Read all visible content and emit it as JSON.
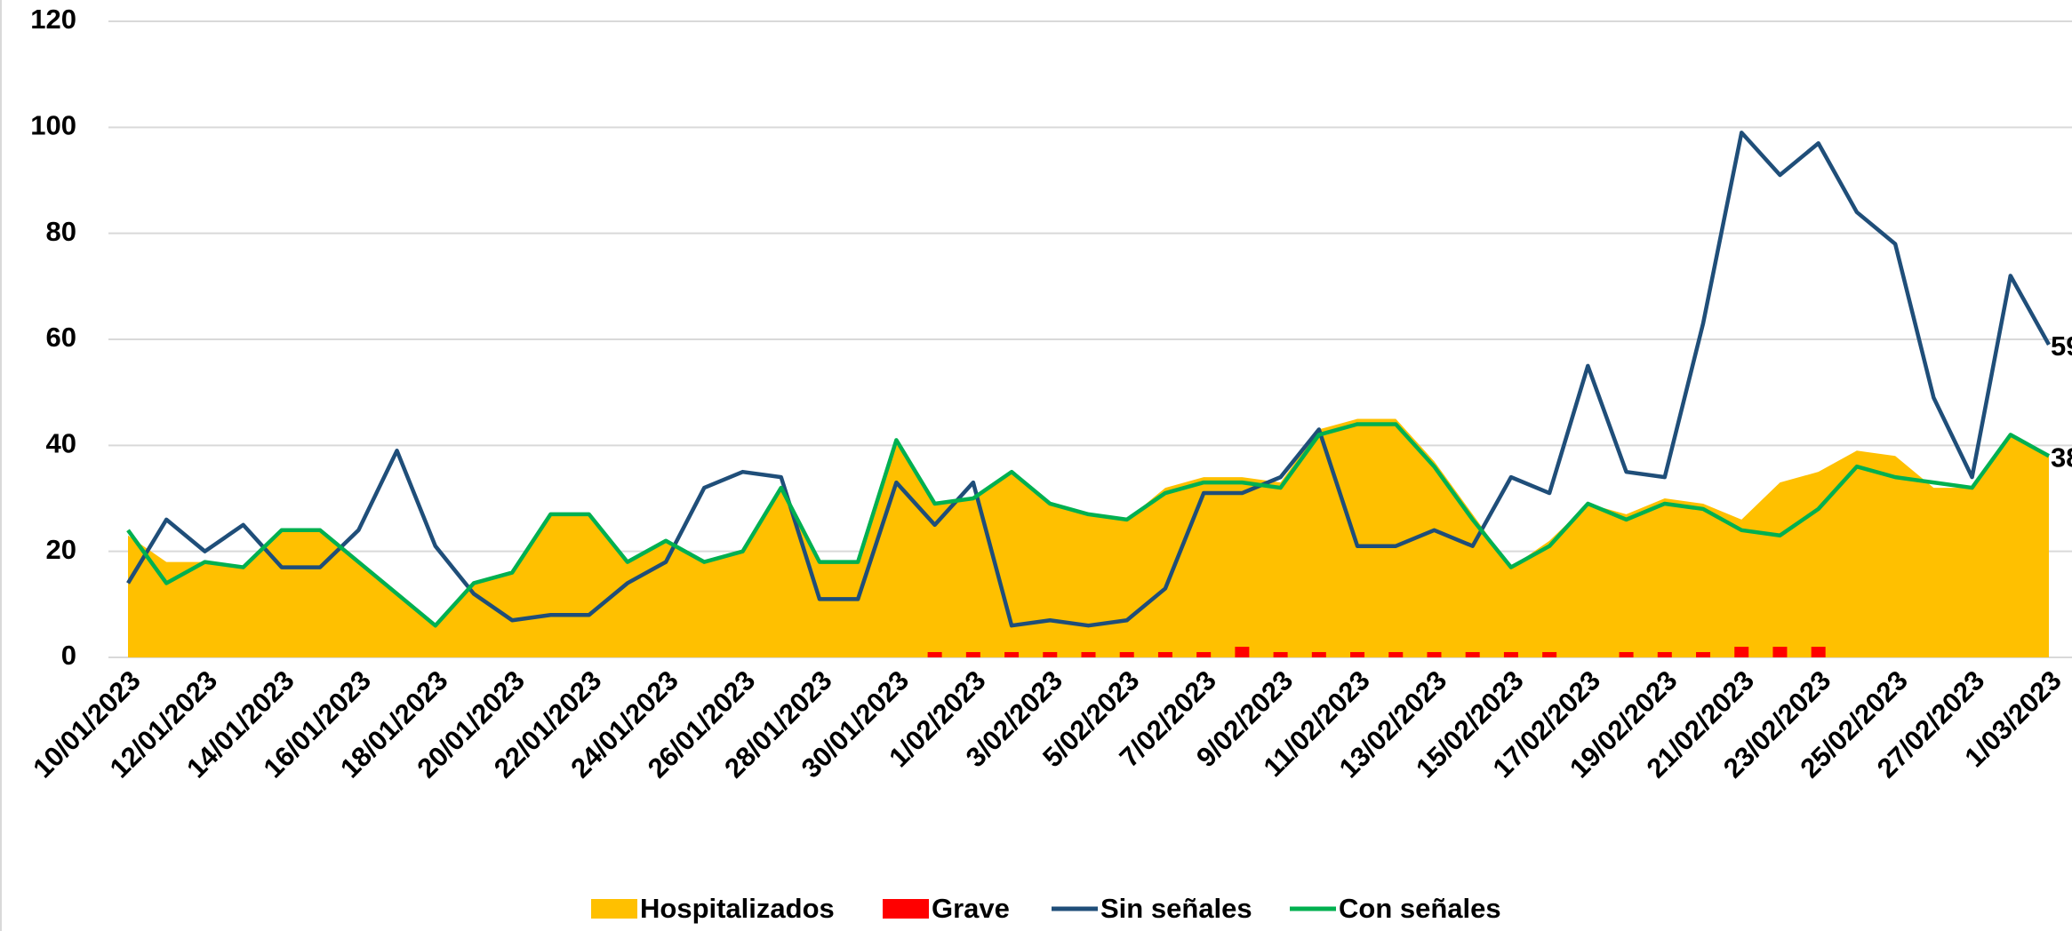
{
  "chart_data": {
    "type": "combo",
    "categories": [
      "10/01/2023",
      null,
      "12/01/2023",
      null,
      "14/01/2023",
      null,
      "16/01/2023",
      null,
      "18/01/2023",
      null,
      "20/01/2023",
      null,
      "22/01/2023",
      null,
      "24/01/2023",
      null,
      "26/01/2023",
      null,
      "28/01/2023",
      null,
      "30/01/2023",
      null,
      "1/02/2023",
      null,
      "3/02/2023",
      null,
      "5/02/2023",
      null,
      "7/02/2023",
      null,
      "9/02/2023",
      null,
      "11/02/2023",
      null,
      "13/02/2023",
      null,
      "15/02/2023",
      null,
      "17/02/2023",
      null,
      "19/02/2023",
      null,
      "21/02/2023",
      null,
      "23/02/2023",
      null,
      "25/02/2023",
      null,
      "27/02/2023",
      null,
      "1/03/2023"
    ],
    "series": [
      {
        "name": "Hospitalizados",
        "type": "area",
        "color": "#ffc000",
        "values": [
          23,
          18,
          18,
          17,
          24,
          24,
          18,
          12,
          6,
          14,
          16,
          27,
          27,
          18,
          22,
          18,
          20,
          32,
          18,
          18,
          41,
          29,
          30,
          35,
          29,
          27,
          26,
          32,
          34,
          34,
          33,
          43,
          45,
          45,
          37,
          27,
          17,
          22,
          29,
          27,
          30,
          29,
          26,
          33,
          35,
          39,
          38,
          32,
          32,
          42,
          38
        ]
      },
      {
        "name": "Grave",
        "type": "bar",
        "color": "#ff0000",
        "values": [
          0,
          0,
          0,
          0,
          0,
          0,
          0,
          0,
          0,
          0,
          0,
          0,
          0,
          0,
          0,
          0,
          0,
          0,
          0,
          0,
          0,
          1,
          1,
          1,
          1,
          1,
          1,
          1,
          1,
          2,
          1,
          1,
          1,
          1,
          1,
          1,
          1,
          1,
          0,
          1,
          1,
          1,
          2,
          2,
          2,
          0,
          0,
          0,
          0,
          0,
          0
        ]
      },
      {
        "name": "Sin señales",
        "type": "line",
        "color": "#1f4e79",
        "end_label": true,
        "values": [
          14,
          26,
          20,
          25,
          17,
          17,
          24,
          39,
          21,
          12,
          7,
          8,
          8,
          14,
          18,
          32,
          35,
          34,
          11,
          11,
          33,
          25,
          33,
          6,
          7,
          6,
          7,
          13,
          31,
          31,
          34,
          43,
          21,
          21,
          24,
          21,
          34,
          31,
          55,
          35,
          34,
          63,
          99,
          91,
          97,
          84,
          78,
          49,
          34,
          72,
          59
        ]
      },
      {
        "name": "Con señales",
        "type": "line",
        "color": "#00b050",
        "end_label": true,
        "values": [
          24,
          14,
          18,
          17,
          24,
          24,
          18,
          12,
          6,
          14,
          16,
          27,
          27,
          18,
          22,
          18,
          20,
          32,
          18,
          18,
          41,
          29,
          30,
          35,
          29,
          27,
          26,
          31,
          33,
          33,
          32,
          42,
          44,
          44,
          36,
          26,
          17,
          21,
          29,
          26,
          29,
          28,
          24,
          23,
          28,
          36,
          34,
          33,
          32,
          42,
          38
        ]
      }
    ],
    "ylim": [
      0,
      120
    ],
    "yticks": [
      0,
      20,
      40,
      60,
      80,
      100,
      120
    ],
    "grid": true,
    "legend": "bottom"
  }
}
